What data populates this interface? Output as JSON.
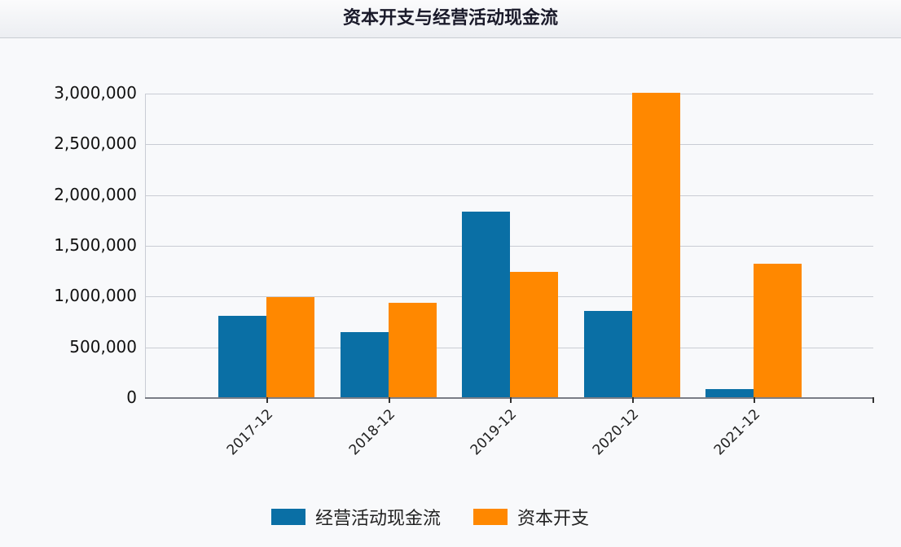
{
  "header": {
    "title": "资本开支与经营活动现金流"
  },
  "colors": {
    "operating_cf": "#0a6fa5",
    "capex": "#ff8800"
  },
  "legend": [
    {
      "label": "经营活动现金流",
      "color": "#0a6fa5"
    },
    {
      "label": "资本开支",
      "color": "#ff8800"
    }
  ],
  "y_ticks": [
    "3,000,000",
    "2,500,000",
    "2,000,000",
    "1,500,000",
    "1,000,000",
    "500,000",
    "0"
  ],
  "x_ticks": [
    "2017-12",
    "2018-12",
    "2019-12",
    "2020-12",
    "2021-12"
  ],
  "chart_data": {
    "type": "bar",
    "title": "资本开支与经营活动现金流",
    "xlabel": "",
    "ylabel": "",
    "categories": [
      "2017-12",
      "2018-12",
      "2019-12",
      "2020-12",
      "2021-12"
    ],
    "series": [
      {
        "name": "经营活动现金流",
        "color": "#0a6fa5",
        "values": [
          810000,
          650000,
          1840000,
          860000,
          90000
        ]
      },
      {
        "name": "资本开支",
        "color": "#ff8800",
        "values": [
          995000,
          940000,
          1245000,
          3005000,
          1325000
        ]
      }
    ],
    "ylim": [
      0,
      3000000
    ],
    "y_tick_step": 500000,
    "grid": true,
    "legend_position": "bottom"
  }
}
